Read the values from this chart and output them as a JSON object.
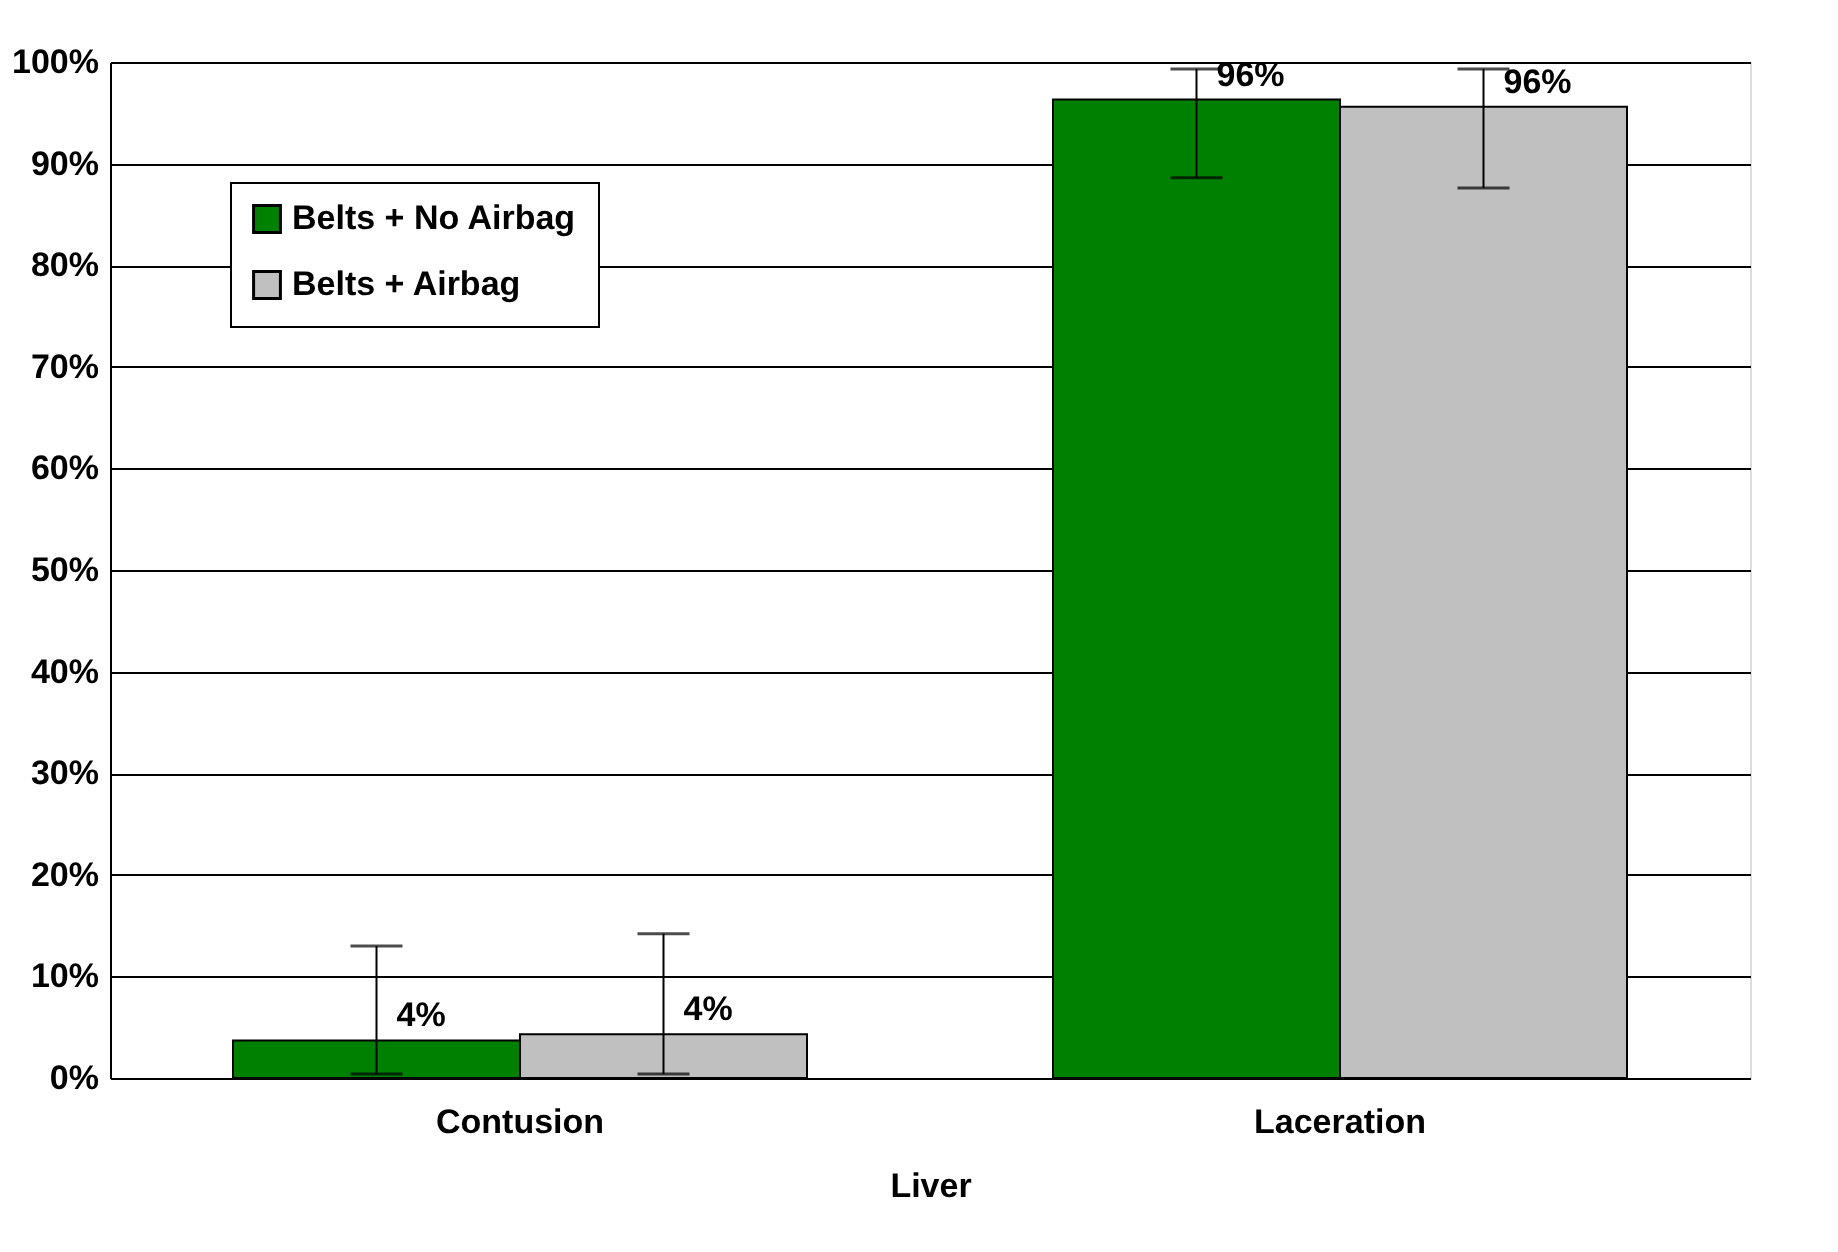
{
  "chart_data": {
    "type": "bar",
    "xlabel": "Liver",
    "categories": [
      "Contusion",
      "Laceration"
    ],
    "series": [
      {
        "name": "Belts + No Airbag",
        "color": "#008000",
        "values": [
          3.7,
          96.3
        ],
        "errors": [
          [
            0.4,
            13.0
          ],
          [
            88.6,
            99.3
          ]
        ],
        "value_labels": [
          "4%",
          "96%"
        ]
      },
      {
        "name": "Belts + Airbag",
        "color": "#c0c0c0",
        "values": [
          4.3,
          95.6
        ],
        "errors": [
          [
            0.4,
            14.2
          ],
          [
            87.6,
            99.3
          ]
        ],
        "value_labels": [
          "4%",
          "96%"
        ]
      }
    ],
    "ylim": [
      0,
      100
    ],
    "yticks": [
      {
        "value": 0,
        "label": "0%"
      },
      {
        "value": 10,
        "label": "10%"
      },
      {
        "value": 20,
        "label": "20%"
      },
      {
        "value": 30,
        "label": "30%"
      },
      {
        "value": 40,
        "label": "40%"
      },
      {
        "value": 50,
        "label": "50%"
      },
      {
        "value": 60,
        "label": "60%"
      },
      {
        "value": 70,
        "label": "70%"
      },
      {
        "value": 80,
        "label": "80%"
      },
      {
        "value": 90,
        "label": "90%"
      },
      {
        "value": 100,
        "label": "100%"
      }
    ],
    "grid": "y",
    "legend": "top left"
  }
}
